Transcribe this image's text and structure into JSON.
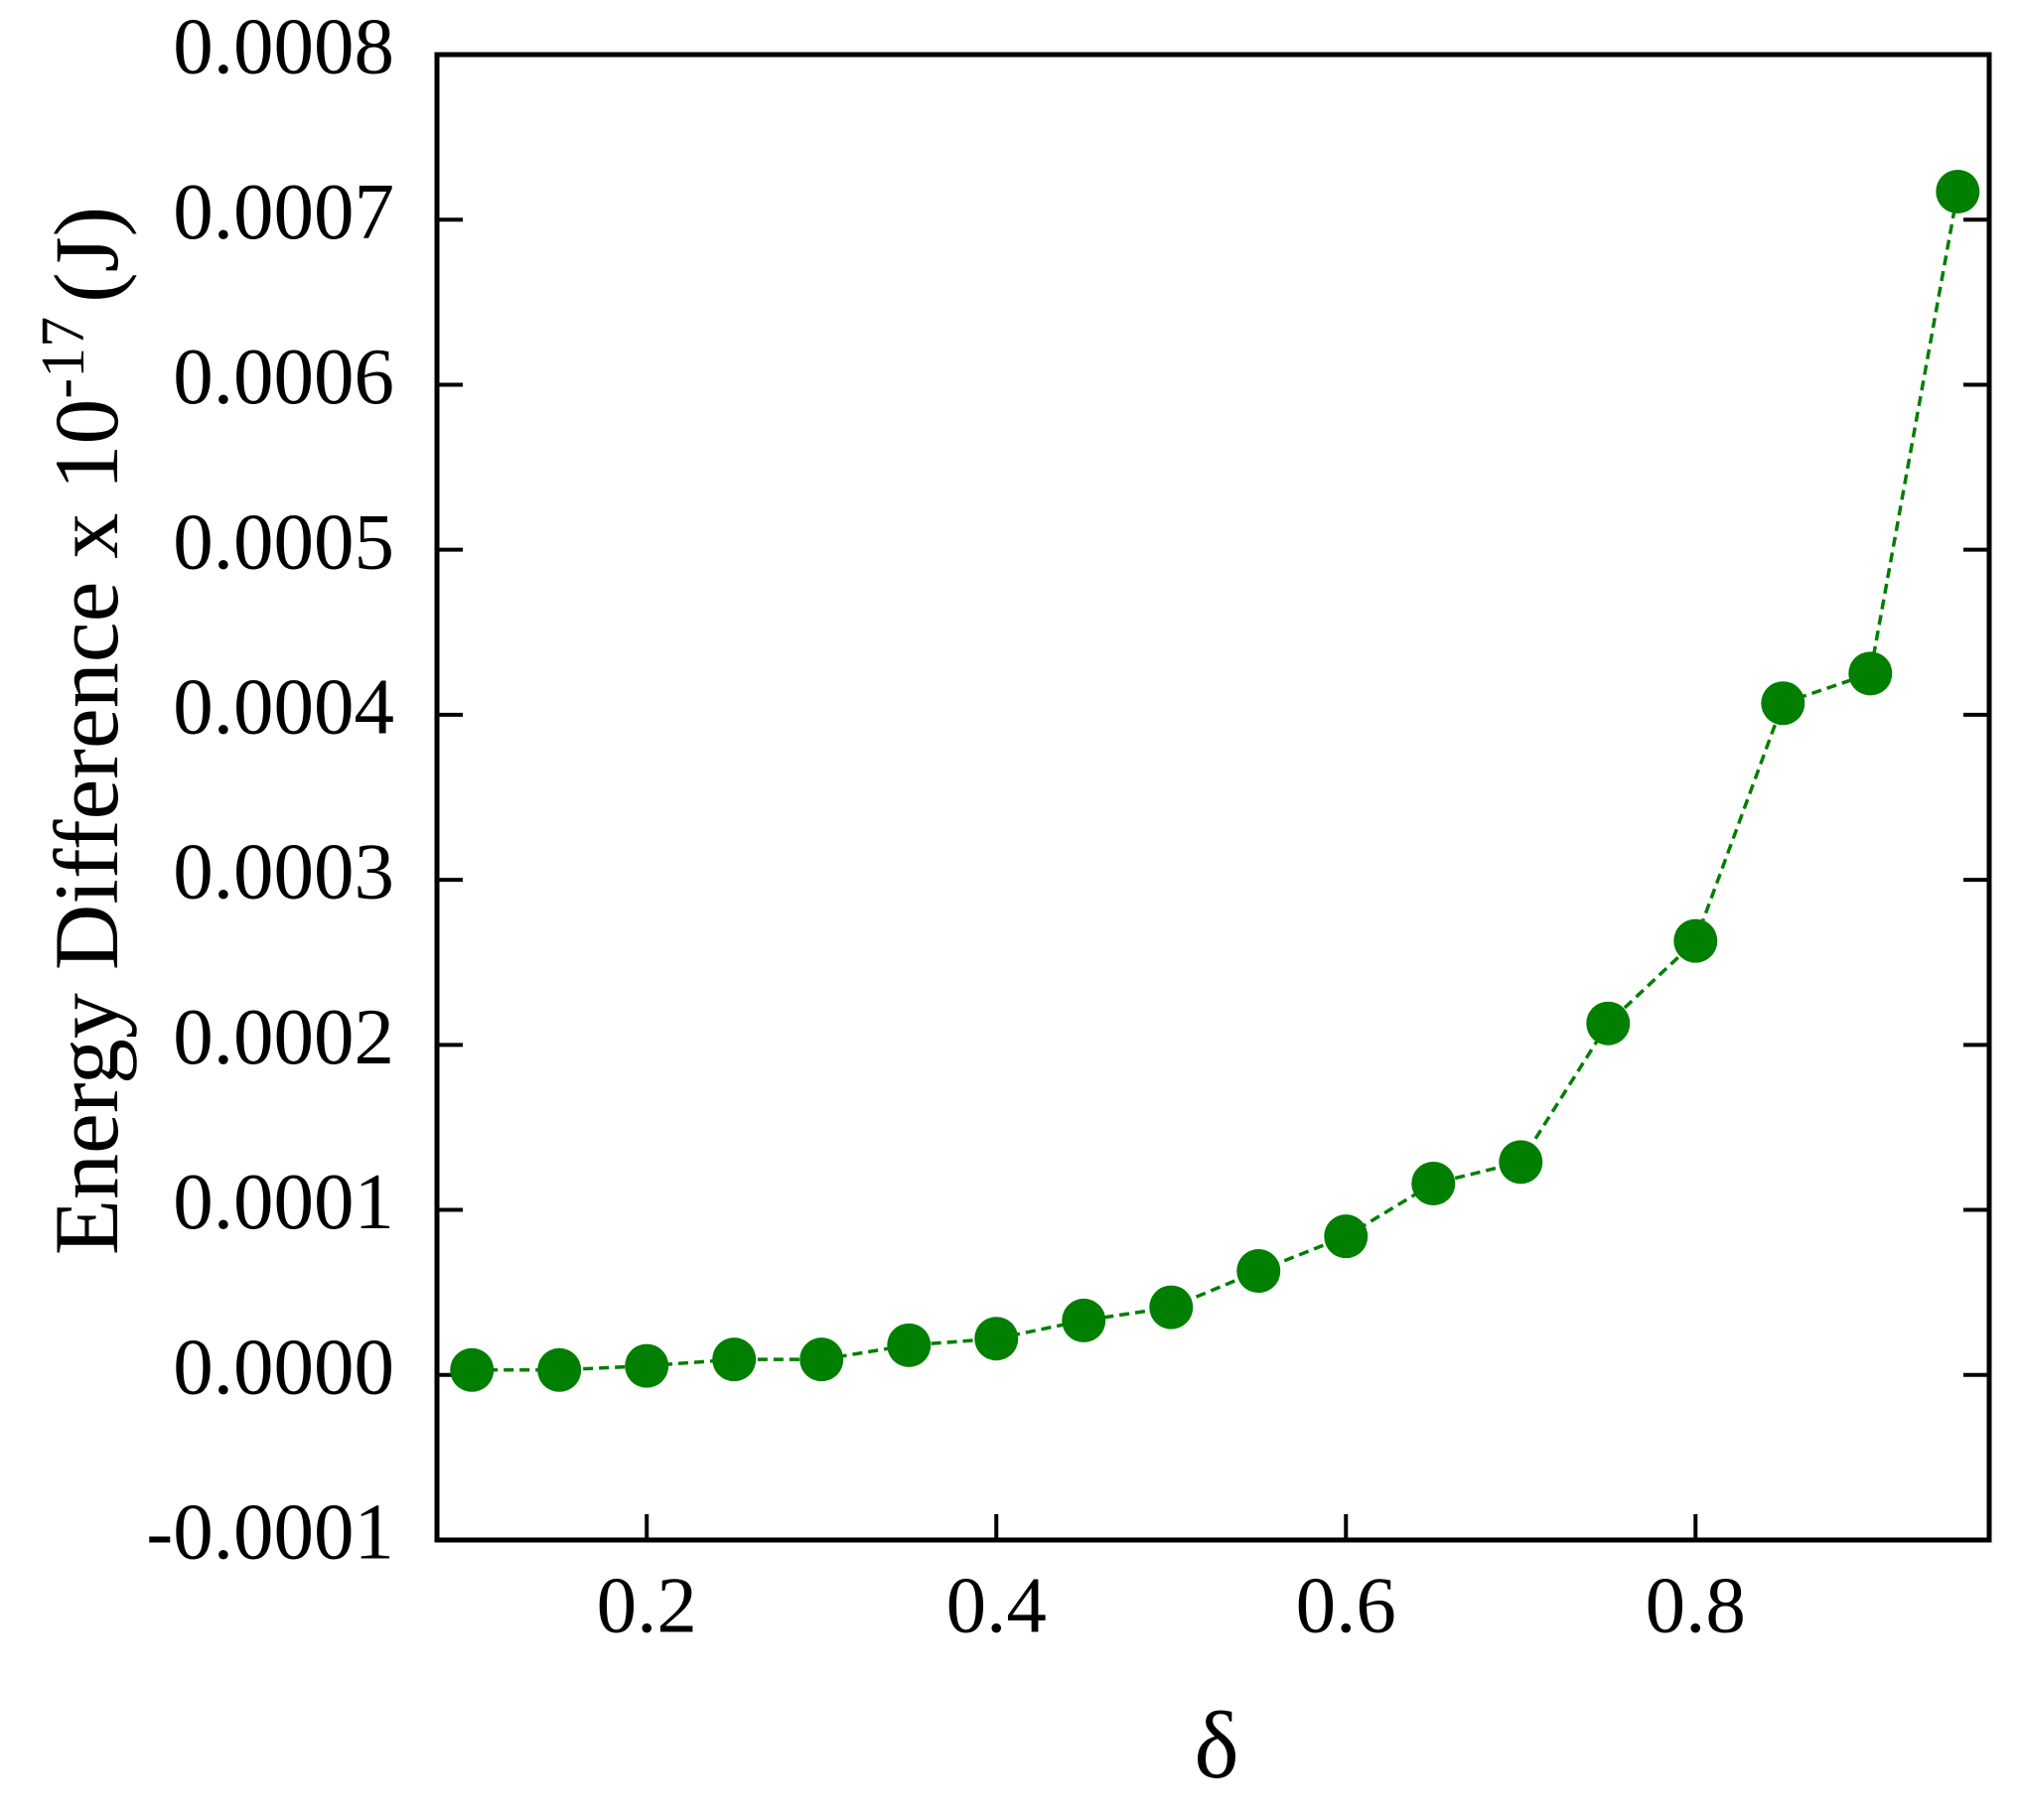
{
  "chart_data": {
    "type": "line",
    "xlabel": "δ",
    "ylabel": {
      "text": "Energy Difference x 10",
      "sup": "-17",
      "unit": "(J)"
    },
    "x": [
      0.1,
      0.15,
      0.2,
      0.25,
      0.3,
      0.35,
      0.4,
      0.45,
      0.5,
      0.55,
      0.6,
      0.65,
      0.7,
      0.75,
      0.8,
      0.85,
      0.9,
      0.95
    ],
    "series": [
      {
        "color": "#007f00",
        "values": [
          3e-06,
          3e-06,
          5.5e-06,
          9.4e-06,
          9.4e-06,
          1.8e-05,
          2.2e-05,
          3.3e-05,
          4.1e-05,
          6.3e-05,
          8.4e-05,
          0.000116,
          0.000129,
          0.000213,
          0.000263,
          0.000407,
          0.000425,
          0.000717
        ]
      }
    ],
    "xlim": [
      0.08,
      0.968
    ],
    "xticks": [
      0.2,
      0.4,
      0.6,
      0.8
    ],
    "ylim": [
      -0.0001,
      0.0008
    ],
    "yticks": [
      -0.0001,
      {
        "value": 0,
        "label": "0.0000"
      },
      0.0001,
      0.0002,
      0.0003,
      0.0004,
      0.0005,
      0.0006,
      0.0007,
      0.0008
    ],
    "line_style": "dashed",
    "grid": false
  }
}
